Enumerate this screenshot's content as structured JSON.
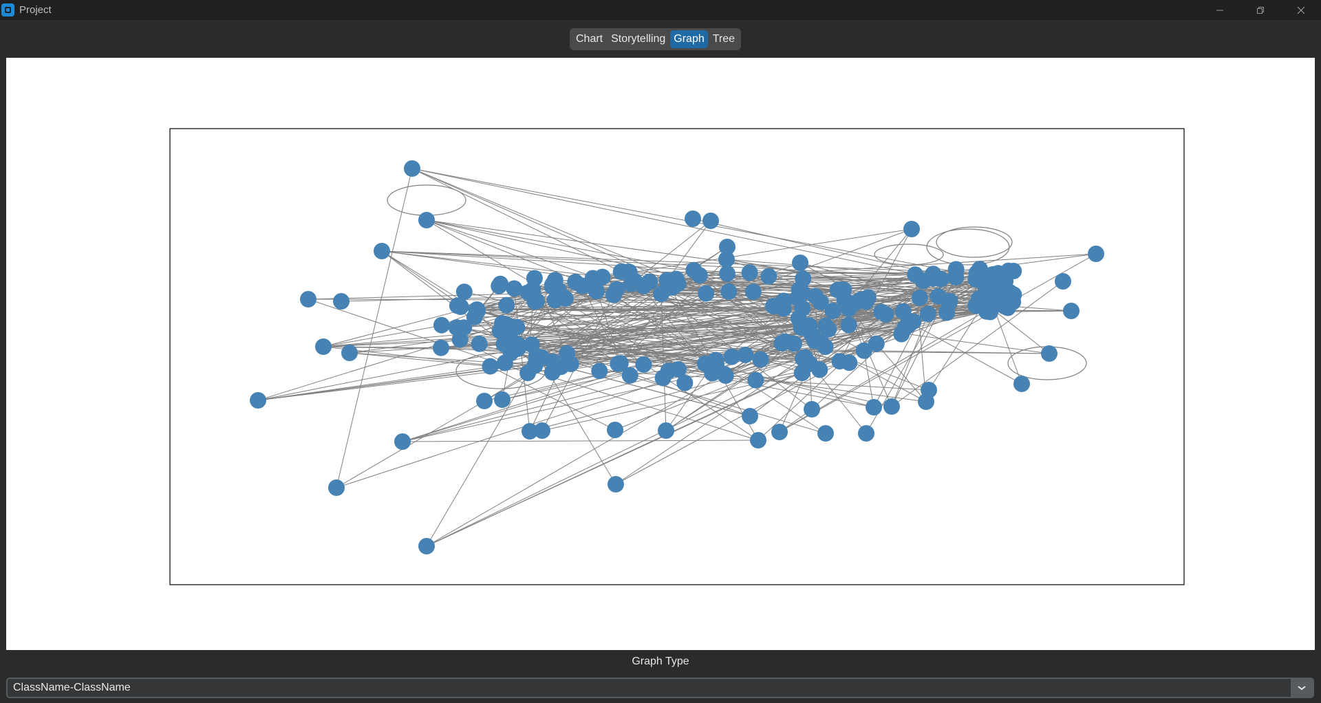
{
  "window": {
    "title": "Project",
    "icon": "app-logo-icon",
    "controls": [
      "minimize-icon",
      "restore-icon",
      "close-icon"
    ]
  },
  "tabs": [
    {
      "label": "Chart",
      "active": false
    },
    {
      "label": "Storytelling",
      "active": false
    },
    {
      "label": "Graph",
      "active": true
    },
    {
      "label": "Tree",
      "active": false
    }
  ],
  "graph_type": {
    "label": "Graph Type",
    "selected": "ClassName-ClassName",
    "arrow_icon": "chevron-down-icon"
  },
  "colors": {
    "accent": "#1f6aa5",
    "node": "#4682b4",
    "edge": "#808080",
    "background": "#2b2b2b",
    "plot_bg": "#ffffff"
  }
}
